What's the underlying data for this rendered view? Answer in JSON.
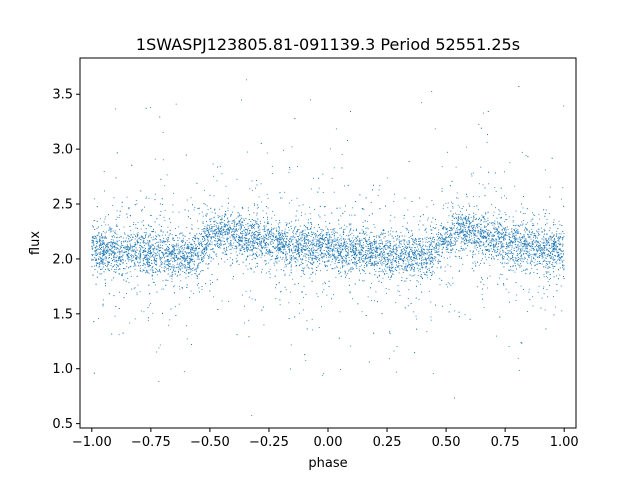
{
  "chart_data": {
    "type": "scatter",
    "title": "1SWASPJ123805.81-091139.3 Period 52551.25s",
    "xlabel": "phase",
    "ylabel": "flux",
    "xlim": [
      -1.05,
      1.05
    ],
    "ylim": [
      0.46,
      3.83
    ],
    "xticks": [
      -1.0,
      -0.75,
      -0.5,
      -0.25,
      0.0,
      0.25,
      0.5,
      0.75,
      1.0
    ],
    "xtick_labels": [
      "−1.00",
      "−0.75",
      "−0.50",
      "−0.25",
      "0.00",
      "0.25",
      "0.50",
      "0.75",
      "1.00"
    ],
    "yticks": [
      0.5,
      1.0,
      1.5,
      2.0,
      2.5,
      3.0,
      3.5
    ],
    "ytick_labels": [
      "0.5",
      "1.0",
      "1.5",
      "2.0",
      "2.5",
      "3.0",
      "3.5"
    ],
    "grid": false,
    "marker_color": "#1f77b4",
    "series": [
      {
        "x": [
          -1.0,
          -0.9,
          -0.8,
          -0.7,
          -0.6,
          -0.55,
          -0.5,
          -0.45,
          -0.4,
          -0.3,
          -0.2,
          -0.1,
          0.0,
          0.1,
          0.2,
          0.3,
          0.4,
          0.45,
          0.5,
          0.55,
          0.6,
          0.7,
          0.8,
          0.9,
          1.0
        ],
        "y": [
          2.08,
          2.08,
          2.07,
          2.05,
          2.03,
          2.06,
          2.18,
          2.24,
          2.23,
          2.17,
          2.13,
          2.11,
          2.09,
          2.07,
          2.05,
          2.04,
          2.03,
          2.06,
          2.18,
          2.24,
          2.23,
          2.17,
          2.13,
          2.11,
          2.08
        ]
      }
    ]
  }
}
